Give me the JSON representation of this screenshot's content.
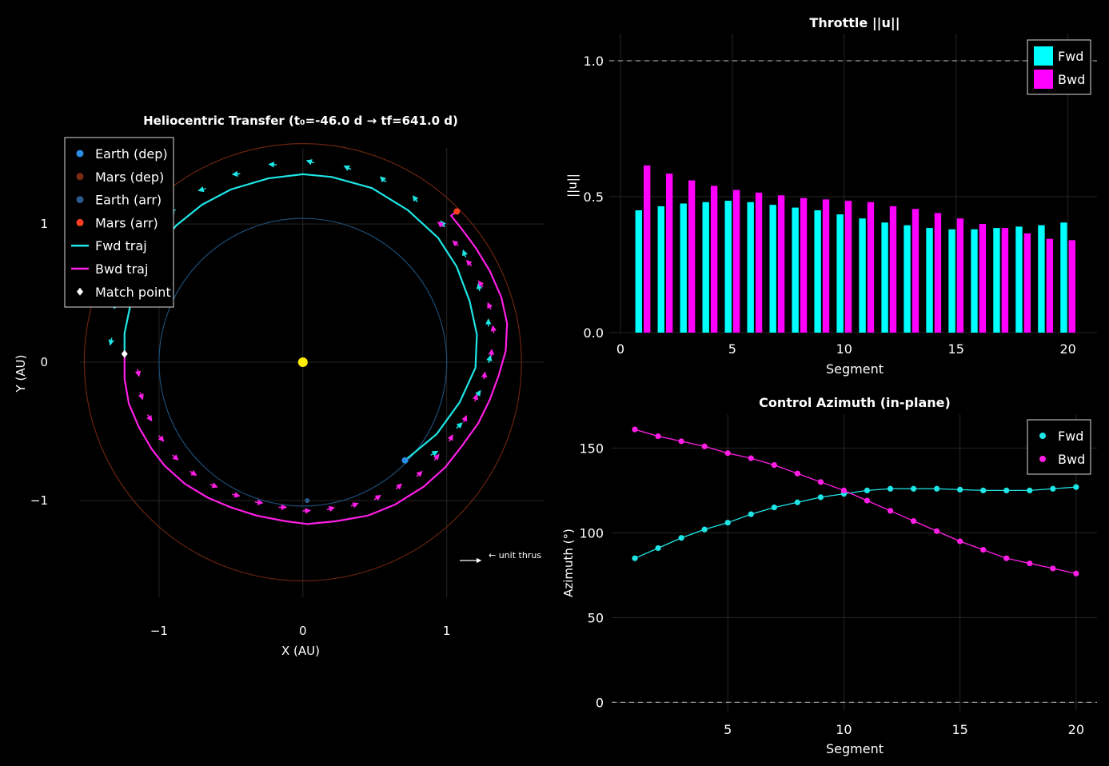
{
  "chart_data": [
    {
      "type": "line",
      "title": "Heliocentric Transfer  (t₀=-46.0 d → tf=641.0 d)",
      "xlabel": "X  (AU)",
      "ylabel": "Y  (AU)",
      "xlim": [
        -1.55,
        1.68
      ],
      "ylim": [
        -1.7,
        1.55
      ],
      "xticks": [
        -1,
        0,
        1
      ],
      "xtick_labels": [
        "−1",
        "0",
        "1"
      ],
      "yticks": [
        -1,
        0,
        1
      ],
      "ytick_labels": [
        "−1",
        "0",
        "1"
      ],
      "grid": true,
      "legend_position": "top-left",
      "legend": [
        "Earth (dep)",
        "Mars (dep)",
        "Earth (arr)",
        "Mars (arr)",
        "Fwd traj",
        "Bwd traj",
        "Match point"
      ],
      "colors": {
        "fwd": "#1ee6e6",
        "bwd": "#ff1ee6",
        "earth_orbit": "#1c4c74",
        "mars_orbit": "#6a2410",
        "earth_dep": "#2a8ee6",
        "mars_dep": "#7a2a10",
        "earth_arr": "#2a5a8a",
        "mars_arr": "#ff4020",
        "sun": "#ffee00",
        "match": "#ffffff"
      },
      "earth_orbit_radius": 1.0,
      "mars_orbit_radius": 1.52,
      "sun": [
        0,
        0
      ],
      "markers": {
        "earth_dep": [
          0.71,
          -0.71
        ],
        "mars_dep": [
          0.12,
          1.12
        ],
        "earth_arr": [
          0.03,
          -1.0
        ],
        "mars_arr": [
          1.07,
          1.09
        ],
        "match_point": [
          -1.24,
          0.06
        ]
      },
      "fwd_traj": [
        [
          0.71,
          -0.71
        ],
        [
          0.93,
          -0.52
        ],
        [
          1.09,
          -0.29
        ],
        [
          1.2,
          -0.04
        ],
        [
          1.21,
          0.2
        ],
        [
          1.16,
          0.44
        ],
        [
          1.07,
          0.69
        ],
        [
          0.94,
          0.9
        ],
        [
          0.73,
          1.1
        ],
        [
          0.48,
          1.26
        ],
        [
          0.2,
          1.34
        ],
        [
          0.0,
          1.36
        ],
        [
          -0.24,
          1.33
        ],
        [
          -0.5,
          1.25
        ],
        [
          -0.7,
          1.14
        ],
        [
          -0.88,
          0.99
        ],
        [
          -1.02,
          0.81
        ],
        [
          -1.13,
          0.61
        ],
        [
          -1.2,
          0.41
        ],
        [
          -1.24,
          0.21
        ],
        [
          -1.24,
          0.06
        ]
      ],
      "bwd_traj": [
        [
          -1.24,
          0.06
        ],
        [
          -1.24,
          -0.12
        ],
        [
          -1.21,
          -0.3
        ],
        [
          -1.14,
          -0.47
        ],
        [
          -1.05,
          -0.63
        ],
        [
          -0.96,
          -0.75
        ],
        [
          -0.82,
          -0.88
        ],
        [
          -0.66,
          -0.98
        ],
        [
          -0.5,
          -1.05
        ],
        [
          -0.32,
          -1.11
        ],
        [
          -0.12,
          -1.15
        ],
        [
          0.03,
          -1.17
        ],
        [
          0.23,
          -1.15
        ],
        [
          0.45,
          -1.11
        ],
        [
          0.64,
          -1.03
        ],
        [
          0.84,
          -0.9
        ],
        [
          0.99,
          -0.76
        ],
        [
          1.11,
          -0.6
        ],
        [
          1.22,
          -0.44
        ],
        [
          1.3,
          -0.27
        ],
        [
          1.36,
          -0.1
        ],
        [
          1.41,
          0.08
        ],
        [
          1.42,
          0.28
        ],
        [
          1.38,
          0.47
        ],
        [
          1.3,
          0.66
        ],
        [
          1.2,
          0.83
        ],
        [
          1.1,
          0.97
        ],
        [
          1.03,
          1.06
        ],
        [
          1.07,
          1.09
        ]
      ],
      "fwd_arrow_count": 20,
      "bwd_arrow_count": 28,
      "annotation": "← unit thrus"
    },
    {
      "type": "bar",
      "title": "Throttle  ||u||",
      "xlabel": "Segment",
      "ylabel": "||u||",
      "xlim": [
        -0.5,
        21.3
      ],
      "ylim": [
        0,
        1.1
      ],
      "xticks": [
        0,
        5,
        10,
        15,
        20
      ],
      "yticks": [
        0.0,
        0.5,
        1.0
      ],
      "ytick_labels": [
        "0.0",
        "0.5",
        "1.0"
      ],
      "reference_line": 1.0,
      "grid": true,
      "legend_position": "top-right",
      "categories": [
        1,
        2,
        3,
        4,
        5,
        6,
        7,
        8,
        9,
        10,
        11,
        12,
        13,
        14,
        15,
        16,
        17,
        18,
        19,
        20
      ],
      "series": [
        {
          "name": "Fwd",
          "color": "#00ffff",
          "values": [
            0.45,
            0.465,
            0.475,
            0.48,
            0.485,
            0.48,
            0.47,
            0.46,
            0.45,
            0.435,
            0.42,
            0.405,
            0.395,
            0.385,
            0.38,
            0.38,
            0.385,
            0.39,
            0.395,
            0.405
          ]
        },
        {
          "name": "Bwd",
          "color": "#ff00ff",
          "values": [
            0.615,
            0.585,
            0.56,
            0.54,
            0.525,
            0.515,
            0.505,
            0.495,
            0.49,
            0.485,
            0.48,
            0.465,
            0.455,
            0.44,
            0.42,
            0.4,
            0.385,
            0.365,
            0.345,
            0.34
          ]
        }
      ]
    },
    {
      "type": "line",
      "title": "Control Azimuth (in-plane)",
      "xlabel": "Segment",
      "ylabel": "Azimuth (°)",
      "xlim": [
        0.0,
        20.9
      ],
      "ylim": [
        -5,
        170
      ],
      "xticks": [
        5,
        10,
        15,
        20
      ],
      "yticks": [
        0,
        50,
        100,
        150
      ],
      "reference_line": 0,
      "grid": true,
      "legend_position": "top-right",
      "x": [
        1,
        2,
        3,
        4,
        5,
        6,
        7,
        8,
        9,
        10,
        11,
        12,
        13,
        14,
        15,
        16,
        17,
        18,
        19,
        20
      ],
      "series": [
        {
          "name": "Fwd",
          "color": "#1ee6e6",
          "values": [
            85,
            91,
            97,
            102,
            106,
            111,
            115,
            118,
            121,
            123,
            125,
            126,
            126,
            126,
            125.5,
            125,
            125,
            125,
            126,
            127
          ]
        },
        {
          "name": "Bwd",
          "color": "#ff1ee6",
          "values": [
            161,
            157,
            154,
            151,
            147,
            144,
            140,
            135,
            130,
            125,
            119,
            113,
            107,
            101,
            95,
            90,
            85,
            82,
            79,
            76
          ]
        }
      ]
    }
  ]
}
